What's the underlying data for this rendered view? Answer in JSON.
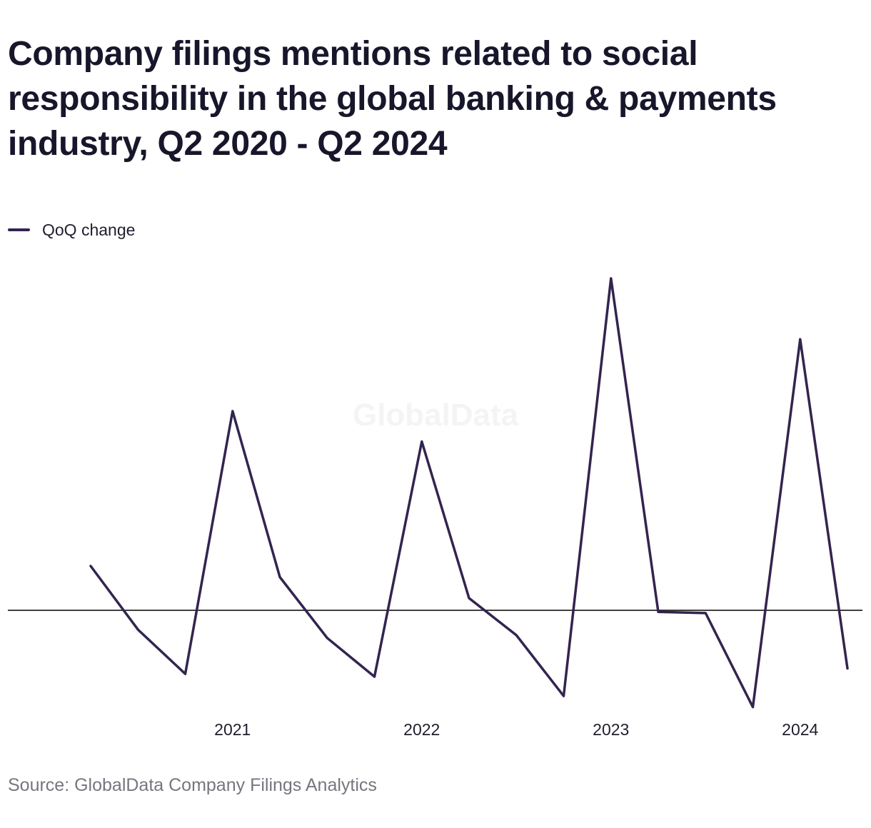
{
  "title": "Company filings mentions related to social responsibility in the global banking & payments industry, Q2 2020 - Q2 2024",
  "legend": {
    "label": "QoQ change"
  },
  "source": "Source: GlobalData Company Filings Analytics",
  "watermark": "GlobalData",
  "colors": {
    "line": "#33244f",
    "baseline": "#000000"
  },
  "chart_data": {
    "type": "line",
    "title": "Company filings mentions related to social responsibility in the global banking & payments industry, Q2 2020 - Q2 2024",
    "xlabel": "",
    "ylabel": "",
    "x_tick_labels": [
      "2021",
      "2022",
      "2023",
      "2024"
    ],
    "x_tick_positions": [
      "Q1 2021",
      "Q1 2022",
      "Q1 2023",
      "Q1 2024"
    ],
    "grid": false,
    "y_axis_labeled": false,
    "legend_position": "top-left",
    "baseline": 0,
    "ylim": [
      -17.5,
      58.0
    ],
    "series": [
      {
        "name": "QoQ change",
        "x": [
          "Q2 2020",
          "Q3 2020",
          "Q4 2020",
          "Q1 2021",
          "Q2 2021",
          "Q3 2021",
          "Q4 2021",
          "Q1 2022",
          "Q2 2022",
          "Q3 2022",
          "Q4 2022",
          "Q1 2023",
          "Q2 2023",
          "Q3 2023",
          "Q4 2023",
          "Q1 2024",
          "Q2 2024"
        ],
        "values": [
          8.0,
          -3.5,
          -11.5,
          36.0,
          6.0,
          -5.0,
          -12.0,
          30.5,
          2.2,
          -4.5,
          -15.5,
          60.0,
          -0.3,
          -0.5,
          -17.5,
          49.0,
          -10.5
        ]
      }
    ]
  }
}
